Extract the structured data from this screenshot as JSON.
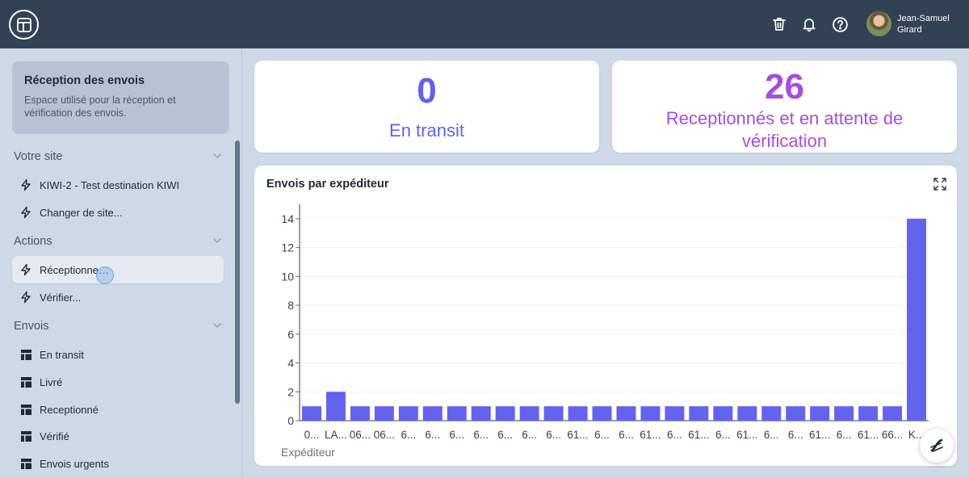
{
  "header": {
    "user_first": "Jean-Samuel",
    "user_last": "Girard",
    "icons": [
      "layout-icon",
      "trash-icon",
      "bell-icon",
      "help-icon"
    ]
  },
  "sidebar": {
    "card": {
      "title": "Réception des envois",
      "description": "Espace utilisé pour la réception et vérification des envois."
    },
    "sections": [
      {
        "label": "Votre site",
        "items": [
          {
            "label": "KIWI-2 - Test destination KIWI",
            "icon": "bolt-icon"
          },
          {
            "label": "Changer de site...",
            "icon": "bolt-icon"
          }
        ]
      },
      {
        "label": "Actions",
        "items": [
          {
            "label": "Réceptionne…",
            "icon": "bolt-icon"
          },
          {
            "label": "Vérifier...",
            "icon": "bolt-icon"
          }
        ]
      },
      {
        "label": "Envois",
        "items": [
          {
            "label": "En transit",
            "icon": "table-icon"
          },
          {
            "label": "Livré",
            "icon": "table-icon"
          },
          {
            "label": "Receptionné",
            "icon": "table-icon"
          },
          {
            "label": "Vérifié",
            "icon": "table-icon"
          },
          {
            "label": "Envois urgents",
            "icon": "table-icon"
          }
        ]
      }
    ]
  },
  "stats": [
    {
      "value": "0",
      "label": "En transit",
      "color": "#6161e8"
    },
    {
      "value": "26",
      "label": "Receptionnés et en attente de vérification",
      "color": "#a64de0"
    }
  ],
  "colors": {
    "header": "#334155",
    "bar": "#6363ee"
  },
  "chart_data": {
    "type": "bar",
    "title": "Envois par expéditeur",
    "xlabel": "Expéditeur",
    "ylabel": "",
    "ylim": [
      0,
      15
    ],
    "yticks": [
      0,
      2,
      4,
      6,
      8,
      10,
      12,
      14
    ],
    "categories": [
      "0...",
      "LA...",
      "06...",
      "06...",
      "6...",
      "6...",
      "6...",
      "6...",
      "6...",
      "6...",
      "6...",
      "61...",
      "6...",
      "6...",
      "61...",
      "6...",
      "61...",
      "6...",
      "61...",
      "6...",
      "6...",
      "61...",
      "6...",
      "61...",
      "66...",
      "K..."
    ],
    "values": [
      1,
      2,
      1,
      1,
      1,
      1,
      1,
      1,
      1,
      1,
      1,
      1,
      1,
      1,
      1,
      1,
      1,
      1,
      1,
      1,
      1,
      1,
      1,
      1,
      1,
      14
    ]
  }
}
